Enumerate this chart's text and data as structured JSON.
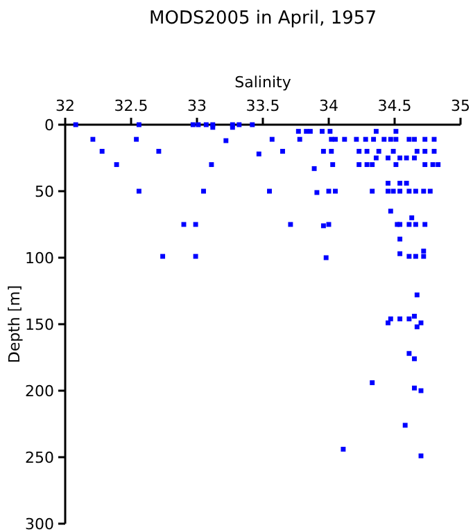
{
  "chart_data": {
    "type": "scatter",
    "title": "MODS2005 in April, 1957",
    "xlabel": "Salinity",
    "ylabel": "Depth [m]",
    "xlim": [
      32,
      35
    ],
    "xticks": [
      32,
      32.5,
      33,
      33.5,
      34,
      34.5,
      35
    ],
    "ylim": [
      300,
      0
    ],
    "yticks": [
      0,
      50,
      100,
      150,
      200,
      250,
      300
    ],
    "marker": "square",
    "grid": false,
    "series": [
      {
        "color": "#0000ff",
        "x": [
          32.08,
          32.21,
          32.28,
          32.39,
          32.56,
          32.54,
          32.71,
          32.56,
          32.9,
          32.99,
          32.74,
          32.99,
          32.97,
          33.01,
          33.07,
          33.12,
          33.27,
          33.32,
          33.42,
          33.22,
          33.47,
          33.11,
          33.05,
          33.12,
          33.27,
          33.77,
          33.83,
          33.86,
          33.95,
          34.01,
          34.36,
          34.51,
          33.57,
          33.78,
          34.02,
          34.05,
          34.12,
          34.21,
          34.28,
          34.34,
          34.42,
          34.47,
          34.51,
          34.61,
          34.65,
          34.73,
          34.8,
          33.65,
          33.96,
          34.02,
          34.23,
          34.29,
          34.38,
          34.49,
          34.67,
          34.73,
          34.8,
          34.36,
          34.45,
          34.54,
          34.59,
          34.65,
          33.89,
          34.03,
          34.23,
          34.29,
          34.33,
          34.51,
          34.73,
          34.79,
          34.83,
          34.45,
          34.54,
          34.59,
          33.55,
          33.91,
          34.0,
          34.05,
          34.33,
          34.45,
          34.49,
          34.54,
          34.61,
          34.66,
          34.72,
          34.77,
          34.47,
          34.63,
          33.71,
          33.96,
          34.0,
          34.52,
          34.54,
          34.61,
          34.66,
          34.73,
          34.54,
          34.54,
          34.72,
          33.98,
          34.61,
          34.66,
          34.72,
          34.67,
          34.47,
          34.45,
          34.54,
          34.61,
          34.65,
          34.7,
          34.67,
          34.61,
          34.65,
          34.33,
          34.65,
          34.7,
          34.58,
          34.11,
          34.7
        ],
        "values": [
          0,
          11,
          20,
          30,
          0,
          11,
          20,
          50,
          75,
          75,
          99,
          99,
          0,
          0,
          0,
          0,
          0,
          0,
          0,
          12,
          22,
          30,
          50,
          2,
          2,
          5,
          5,
          5,
          5,
          5,
          5,
          5,
          11,
          11,
          11,
          11,
          11,
          11,
          11,
          11,
          11,
          11,
          11,
          11,
          11,
          11,
          11,
          20,
          20,
          20,
          20,
          20,
          20,
          20,
          20,
          20,
          20,
          25,
          25,
          25,
          25,
          25,
          33,
          30,
          30,
          30,
          30,
          30,
          30,
          30,
          30,
          44,
          44,
          44,
          50,
          51,
          50,
          50,
          50,
          50,
          50,
          50,
          50,
          50,
          50,
          50,
          65,
          70,
          75,
          76,
          75,
          75,
          75,
          75,
          75,
          75,
          86,
          97,
          95,
          100,
          99,
          99,
          99,
          128,
          146,
          149,
          146,
          146,
          144,
          149,
          152,
          172,
          176,
          194,
          198,
          200,
          226,
          244,
          249
        ]
      }
    ]
  }
}
